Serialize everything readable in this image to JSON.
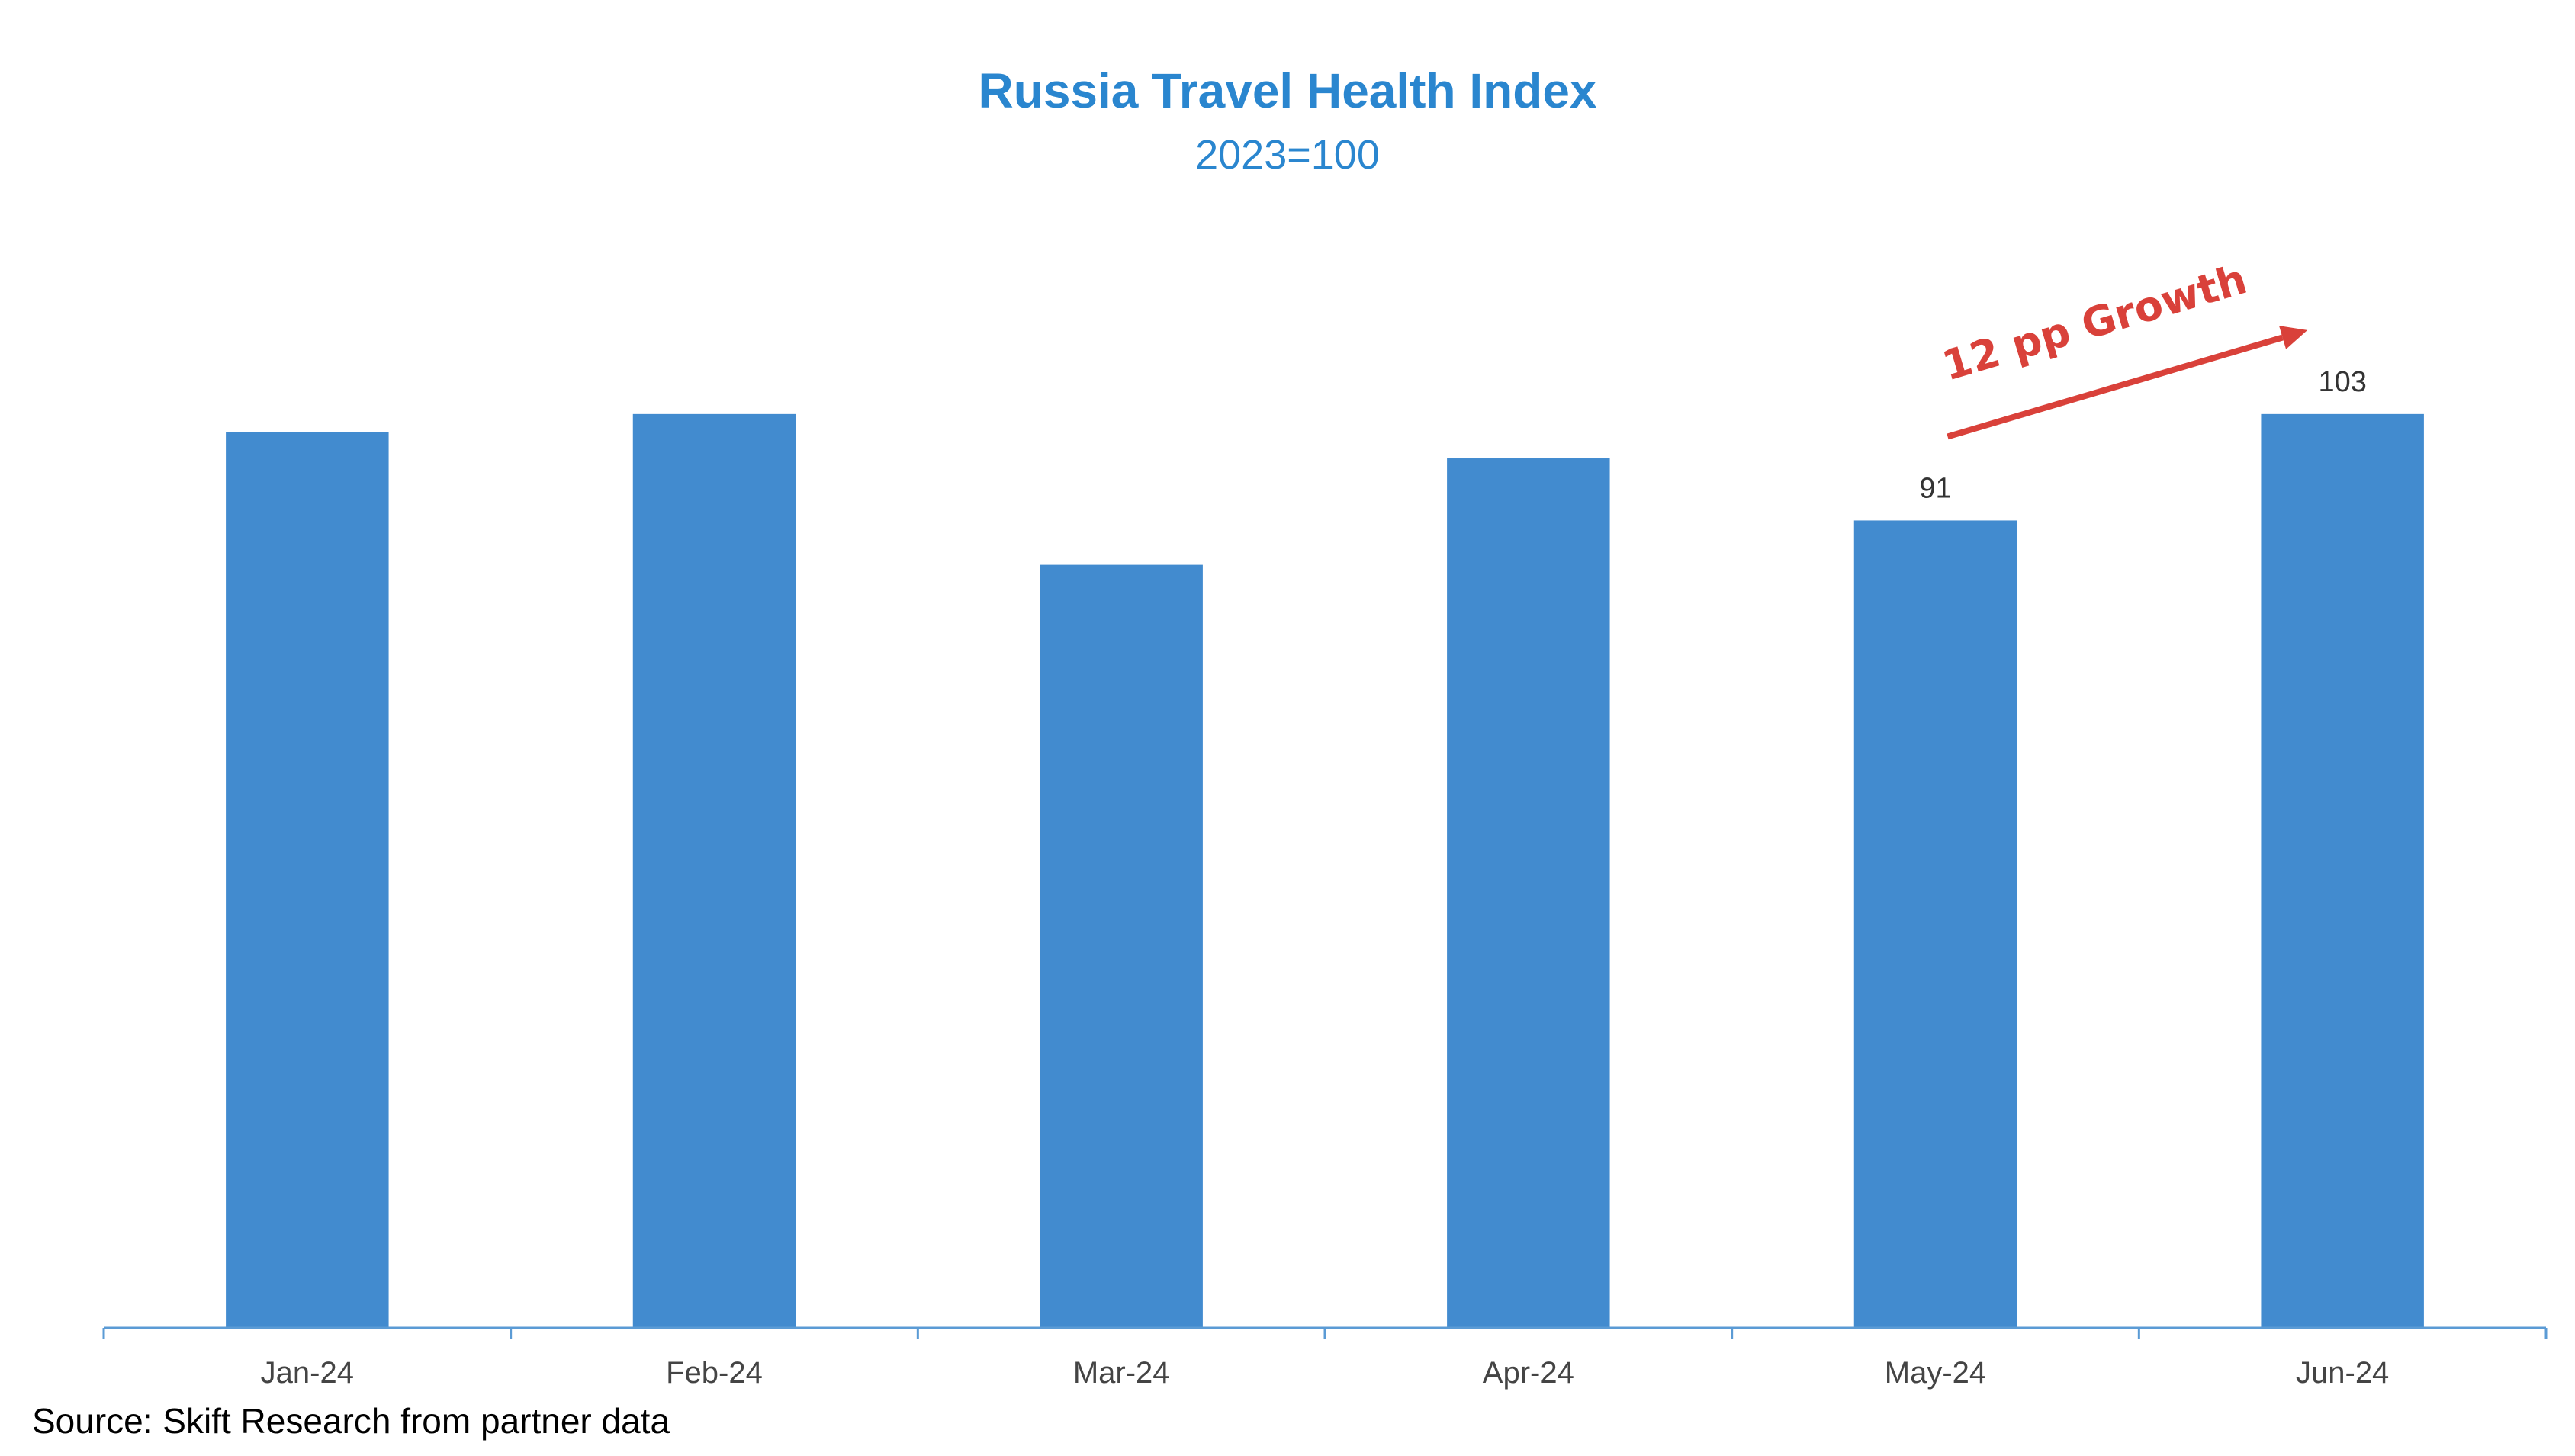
{
  "chart_data": {
    "type": "bar",
    "title": "Russia Travel Health Index",
    "subtitle": "2023=100",
    "categories": [
      "Jan-24",
      "Feb-24",
      "Mar-24",
      "Apr-24",
      "May-24",
      "Jun-24"
    ],
    "values": [
      101,
      103,
      86,
      98,
      91,
      103
    ],
    "data_labels": [
      "",
      "",
      "",
      "",
      "91",
      "103"
    ],
    "ylim": [
      0,
      117
    ],
    "xlabel": "",
    "ylabel": "",
    "grid": false,
    "legend": "none",
    "annotation": {
      "text": "12 pp Growth",
      "from_category": "May-24",
      "to_category": "Jun-24"
    },
    "source": "Source: Skift Research from partner data"
  },
  "colors": {
    "bar": "#428bcf",
    "title": "#2a86cf",
    "axis": "#5b9bd5",
    "annotation": "#d9413a"
  }
}
